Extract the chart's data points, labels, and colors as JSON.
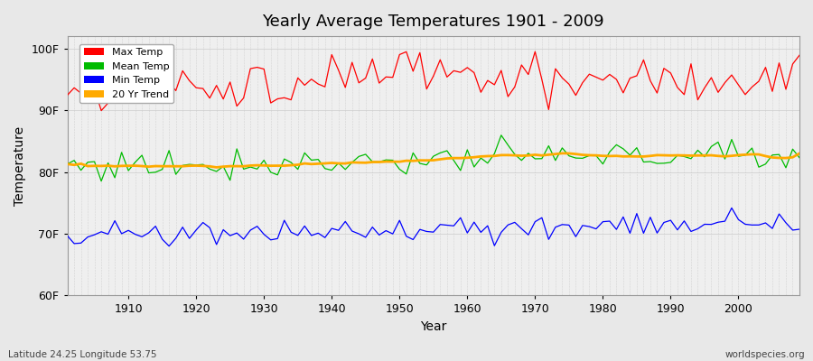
{
  "title": "Yearly Average Temperatures 1901 - 2009",
  "xlabel": "Year",
  "ylabel": "Temperature",
  "xlim": [
    1901,
    2009
  ],
  "ylim": [
    60,
    102
  ],
  "yticks": [
    60,
    70,
    80,
    90,
    100
  ],
  "ytick_labels": [
    "60F",
    "70F",
    "80F",
    "90F",
    "100F"
  ],
  "xticks": [
    1910,
    1920,
    1930,
    1940,
    1950,
    1960,
    1970,
    1980,
    1990,
    2000
  ],
  "start_year": 1901,
  "end_year": 2009,
  "legend": [
    {
      "label": "Max Temp",
      "color": "#ff0000"
    },
    {
      "label": "Mean Temp",
      "color": "#00bb00"
    },
    {
      "label": "Min Temp",
      "color": "#0000ff"
    },
    {
      "label": "20 Yr Trend",
      "color": "#ffaa00"
    }
  ],
  "background_color": "#e8e8e8",
  "plot_bg_color": "#efefef",
  "grid_color": "#cccccc",
  "footer_left": "Latitude 24.25 Longitude 53.75",
  "footer_right": "worldspecies.org"
}
